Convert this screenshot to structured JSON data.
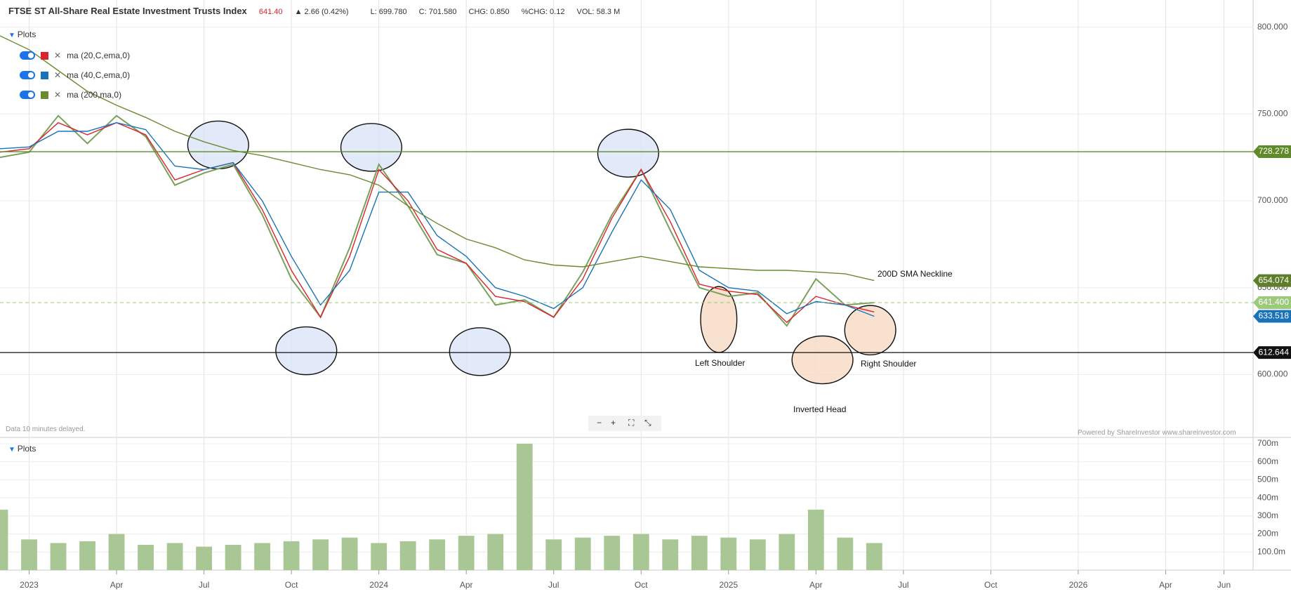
{
  "header": {
    "title": "FTSE ST All-Share Real Estate Investment Trusts Index",
    "last": "641.40",
    "change": "2.66 (0.42%)",
    "low": "L: 699.780",
    "close": "C: 701.580",
    "chg": "CHG: 0.850",
    "pchg": "%CHG: 0.12",
    "vol": "VOL: 58.3 M"
  },
  "plots_label": "Plots",
  "volume_plots_label": "Plots",
  "delay_note": "Data 10 minutes delayed.",
  "credit": "Powered by ShareInvestor www.shareinvestor.com",
  "annotations": {
    "neckline": "200D SMA Neckline",
    "left_shoulder": "Left Shoulder",
    "head": "Inverted Head",
    "right_shoulder": "Right Shoulder"
  },
  "chart_data": [
    {
      "type": "line",
      "x": [
        "2022-12",
        "2023-01",
        "2023-02",
        "2023-03",
        "2023-04",
        "2023-05",
        "2023-06",
        "2023-07",
        "2023-08",
        "2023-09",
        "2023-10",
        "2023-11",
        "2023-12",
        "2024-01",
        "2024-02",
        "2024-03",
        "2024-04",
        "2024-05",
        "2024-06",
        "2024-07",
        "2024-08",
        "2024-09",
        "2024-10",
        "2024-11",
        "2024-12",
        "2025-01",
        "2025-02",
        "2025-03",
        "2025-04",
        "2025-05",
        "2025-06"
      ],
      "price": {
        "color": "#7aa05a",
        "values": [
          725,
          728,
          749,
          733,
          749,
          737,
          709,
          716,
          721,
          692,
          655,
          633,
          673,
          721,
          697,
          669,
          664,
          640,
          643,
          633,
          659,
          692,
          718,
          683,
          650,
          645,
          647,
          628,
          655,
          640,
          641.4
        ]
      },
      "series": [
        {
          "name": "ma (20,C,ema,0)",
          "color": "#d9232e",
          "values": [
            728,
            730,
            745,
            738,
            745,
            738,
            712,
            718,
            722,
            695,
            660,
            633,
            668,
            718,
            700,
            672,
            664,
            645,
            642,
            633,
            655,
            690,
            718,
            688,
            652,
            648,
            646,
            630,
            645,
            640,
            636
          ]
        },
        {
          "name": "ma (40,C,ema,0)",
          "color": "#1a73b8",
          "values": [
            730,
            731,
            740,
            740,
            745,
            741,
            720,
            718,
            722,
            700,
            668,
            640,
            660,
            705,
            705,
            680,
            668,
            650,
            645,
            638,
            650,
            682,
            712,
            695,
            660,
            650,
            648,
            635,
            642,
            640,
            633.518
          ]
        },
        {
          "name": "ma (200,ma,0)",
          "color": "#6b8a2e",
          "values": [
            795,
            787,
            775,
            763,
            755,
            748,
            740,
            734,
            729,
            726,
            722,
            718,
            715,
            709,
            697,
            687,
            678,
            673,
            666,
            663,
            662,
            665,
            668,
            665,
            662,
            661,
            660,
            660,
            659,
            658,
            654.074
          ]
        }
      ],
      "xlim": [
        "2022-12",
        "2026-07"
      ],
      "xticks": [
        {
          "value": "2023-01",
          "label": "2023"
        },
        {
          "value": "2023-04",
          "label": "Apr"
        },
        {
          "value": "2023-07",
          "label": "Jul"
        },
        {
          "value": "2023-10",
          "label": "Oct"
        },
        {
          "value": "2024-01",
          "label": "2024"
        },
        {
          "value": "2024-04",
          "label": "Apr"
        },
        {
          "value": "2024-07",
          "label": "Jul"
        },
        {
          "value": "2024-10",
          "label": "Oct"
        },
        {
          "value": "2025-01",
          "label": "2025"
        },
        {
          "value": "2025-04",
          "label": "Apr"
        },
        {
          "value": "2025-07",
          "label": "Jul"
        },
        {
          "value": "2025-10",
          "label": "Oct"
        },
        {
          "value": "2026-01",
          "label": "2026"
        },
        {
          "value": "2026-04",
          "label": "Apr"
        },
        {
          "value": "2026-06",
          "label": "Jun"
        }
      ],
      "ylim": [
        565,
        805.5
      ],
      "yticks": [
        {
          "value": 600,
          "label": "600.000"
        },
        {
          "value": 650,
          "label": "650.000"
        },
        {
          "value": 700,
          "label": "700.000"
        },
        {
          "value": 750,
          "label": "750.000"
        },
        {
          "value": 800,
          "label": "800.000"
        }
      ],
      "grid": true,
      "hlines": [
        {
          "value": 728.278,
          "color": "#5f8a2a",
          "style": "solid"
        },
        {
          "value": 654.074,
          "color": "#5f7d2a",
          "style": "none"
        },
        {
          "value": 641.4,
          "label": "641.400",
          "color": "#9cc97a",
          "style": "dashed"
        },
        {
          "value": 633.518,
          "color": "#1a73b8",
          "style": "none"
        },
        {
          "value": 612.644,
          "color": "#111111",
          "style": "solid"
        }
      ]
    },
    {
      "type": "bar",
      "x": [
        "2022-12",
        "2023-01",
        "2023-02",
        "2023-03",
        "2023-04",
        "2023-05",
        "2023-06",
        "2023-07",
        "2023-08",
        "2023-09",
        "2023-10",
        "2023-11",
        "2023-12",
        "2024-01",
        "2024-02",
        "2024-03",
        "2024-04",
        "2024-05",
        "2024-06",
        "2024-07",
        "2024-08",
        "2024-09",
        "2024-10",
        "2024-11",
        "2024-12",
        "2025-01",
        "2025-02",
        "2025-03",
        "2025-04",
        "2025-05",
        "2025-06"
      ],
      "values": [
        335,
        170,
        150,
        160,
        200,
        140,
        150,
        130,
        140,
        150,
        160,
        170,
        180,
        150,
        160,
        170,
        190,
        200,
        700,
        170,
        180,
        190,
        200,
        170,
        190,
        180,
        170,
        200,
        335,
        180,
        150
      ],
      "color": "#a9c795",
      "xlim": [
        "2022-12",
        "2026-07"
      ],
      "ylim": [
        0,
        727
      ],
      "yticks": [
        {
          "value": 100,
          "label": "100.0m"
        },
        {
          "value": 200,
          "label": "200m"
        },
        {
          "value": 300,
          "label": "300m"
        },
        {
          "value": 400,
          "label": "400m"
        },
        {
          "value": 500,
          "label": "500m"
        },
        {
          "value": 600,
          "label": "600m"
        },
        {
          "value": 700,
          "label": "700m"
        }
      ],
      "grid": true
    }
  ]
}
